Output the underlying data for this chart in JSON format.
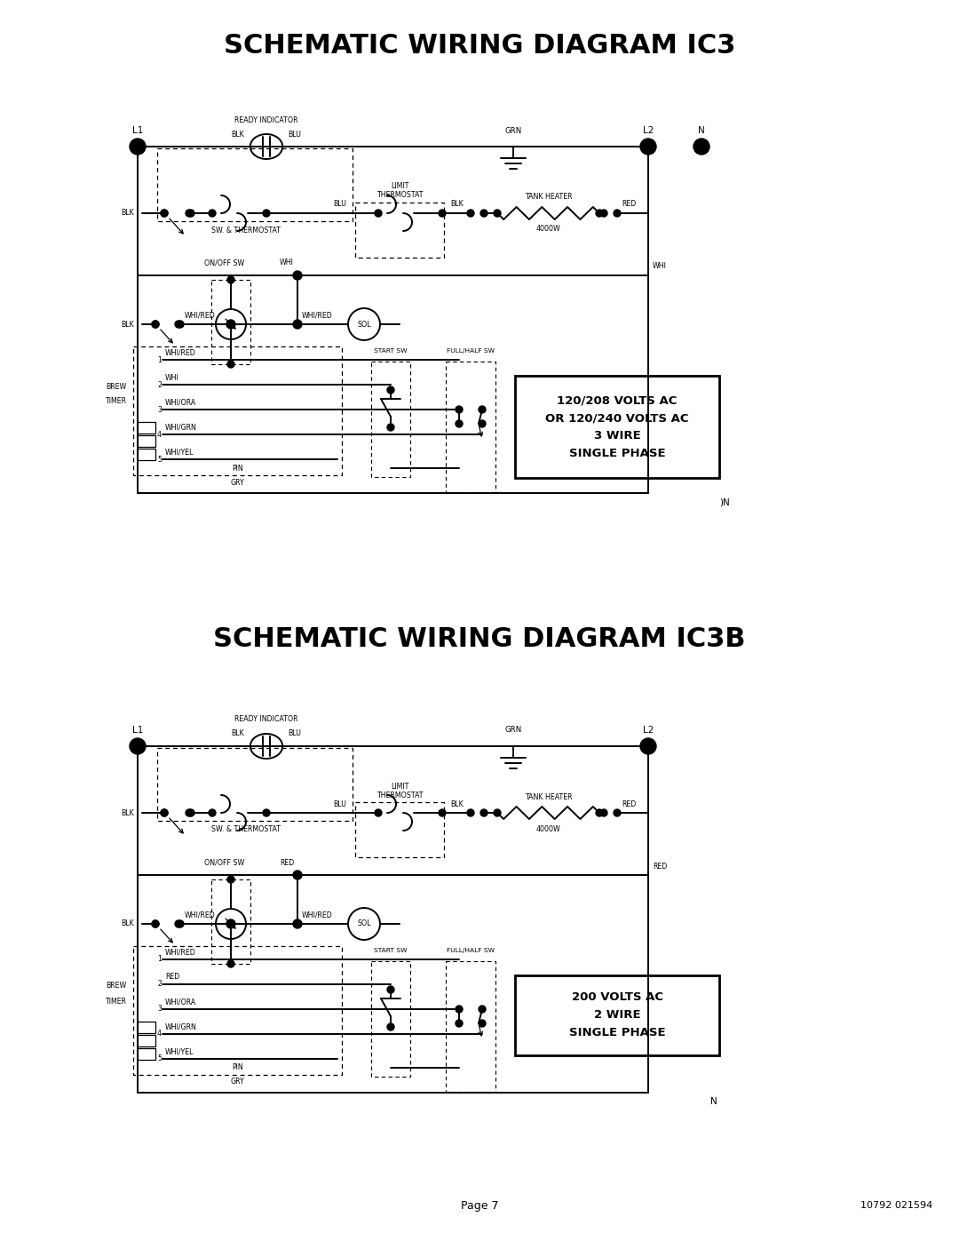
{
  "title1": "SCHEMATIC WIRING DIAGRAM IC3",
  "title2": "SCHEMATIC WIRING DIAGRAM IC3B",
  "page_label": "Page 7",
  "doc_number": "10792 021594",
  "bg_color": "#ffffff",
  "line_color": "#000000",
  "title_fontsize": 22,
  "fs": 7.5,
  "fs_s": 6.2,
  "lw": 1.4,
  "lw_thin": 0.9,
  "ic3_box_text": "120/208 VOLTS AC\nOR 120/240 VOLTS AC\n3 WIRE\nSINGLE PHASE",
  "ic3b_box_text": "200 VOLTS AC\n2 WIRE\nSINGLE PHASE",
  "ic3_pin2": "WHI",
  "ic3b_pin2": "RED",
  "ic3_wire": "WHI",
  "ic3b_wire": "RED",
  "ic3_N_visible": true,
  "ic3b_N_visible": false
}
